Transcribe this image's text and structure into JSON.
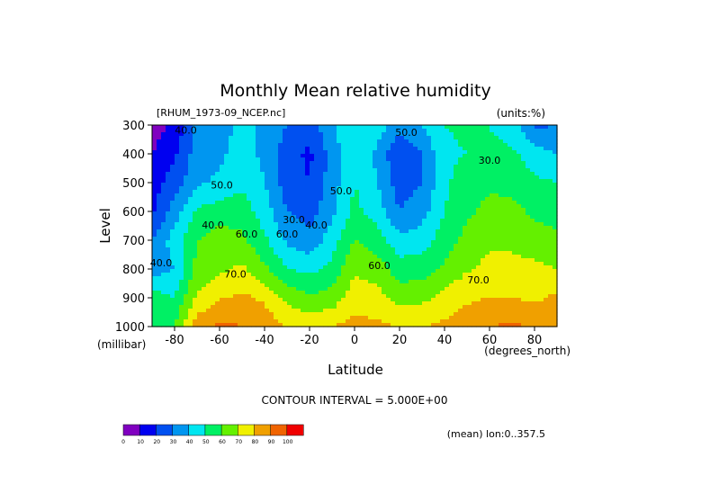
{
  "chart_data": {
    "type": "heatmap",
    "title": "Monthly Mean relative humidity",
    "dataset_label": "[RHUM_1973-09_NCEP.nc]",
    "units_label": "(units:%)",
    "ylabel": "Level",
    "yunits": "(millibar)",
    "xlabel": "Latitude",
    "xunits": "(degrees_north)",
    "contour_interval_label": "CONTOUR INTERVAL = 5.000E+00",
    "footer_note": "(mean) lon:0..357.5",
    "xlim": [
      -90,
      90
    ],
    "ylim": [
      1000,
      300
    ],
    "x_ticks": [
      -80,
      -60,
      -40,
      -20,
      0,
      20,
      40,
      60,
      80
    ],
    "x_tick_labels": [
      "-80",
      "-60",
      "-40",
      "-20",
      "0",
      "20",
      "40",
      "60",
      "80"
    ],
    "y_ticks": [
      300,
      400,
      500,
      600,
      700,
      800,
      900,
      1000
    ],
    "y_tick_labels": [
      "300",
      "400",
      "500",
      "600",
      "700",
      "800",
      "900",
      "1000"
    ],
    "contour_labels": [
      "40.0",
      "50.0",
      "30.0",
      "40.0",
      "50.0",
      "60.0",
      "70.0",
      "60.0",
      "70.0",
      "40.0",
      "50.0",
      "30.0",
      "40.0",
      "60.0"
    ],
    "colorbar": {
      "levels": [
        0,
        10,
        20,
        30,
        40,
        50,
        60,
        70,
        80,
        90,
        100
      ],
      "tick_labels": [
        "0",
        "10",
        "20",
        "30",
        "40",
        "50",
        "60",
        "70",
        "80",
        "90",
        "100"
      ],
      "colors": [
        "#8000c0",
        "#0000f0",
        "#0050f0",
        "#0096f0",
        "#00e6f0",
        "#00f064",
        "#64f000",
        "#f0f000",
        "#f0a000",
        "#f06400",
        "#f00000"
      ]
    },
    "lat": [
      -90,
      -80,
      -70,
      -60,
      -50,
      -40,
      -30,
      -20,
      -10,
      0,
      10,
      20,
      30,
      40,
      50,
      60,
      70,
      80,
      90
    ],
    "levels_mb": [
      300,
      400,
      500,
      600,
      700,
      800,
      900,
      1000
    ],
    "values": [
      [
        5,
        12,
        33,
        37,
        42,
        38,
        30,
        25,
        38,
        50,
        45,
        35,
        40,
        50,
        52,
        50,
        45,
        28,
        30
      ],
      [
        10,
        18,
        35,
        38,
        44,
        38,
        24,
        18,
        34,
        50,
        38,
        20,
        30,
        48,
        50,
        52,
        52,
        45,
        40
      ],
      [
        15,
        25,
        38,
        42,
        48,
        40,
        25,
        20,
        35,
        50,
        40,
        25,
        30,
        48,
        55,
        58,
        57,
        52,
        50
      ],
      [
        18,
        35,
        52,
        55,
        55,
        45,
        30,
        25,
        38,
        53,
        45,
        30,
        36,
        50,
        58,
        63,
        63,
        58,
        55
      ],
      [
        30,
        45,
        60,
        65,
        62,
        52,
        38,
        33,
        45,
        60,
        55,
        43,
        45,
        55,
        63,
        68,
        67,
        65,
        63
      ],
      [
        35,
        40,
        63,
        68,
        72,
        62,
        50,
        47,
        53,
        68,
        65,
        55,
        55,
        62,
        69,
        73,
        74,
        72,
        70
      ],
      [
        55,
        50,
        72,
        79,
        82,
        78,
        68,
        61,
        64,
        76,
        74,
        66,
        67,
        74,
        78,
        80,
        80,
        78,
        82
      ],
      [
        60,
        60,
        85,
        92,
        90,
        87,
        78,
        78,
        80,
        83,
        82,
        80,
        80,
        82,
        87,
        90,
        92,
        88,
        85
      ]
    ]
  }
}
